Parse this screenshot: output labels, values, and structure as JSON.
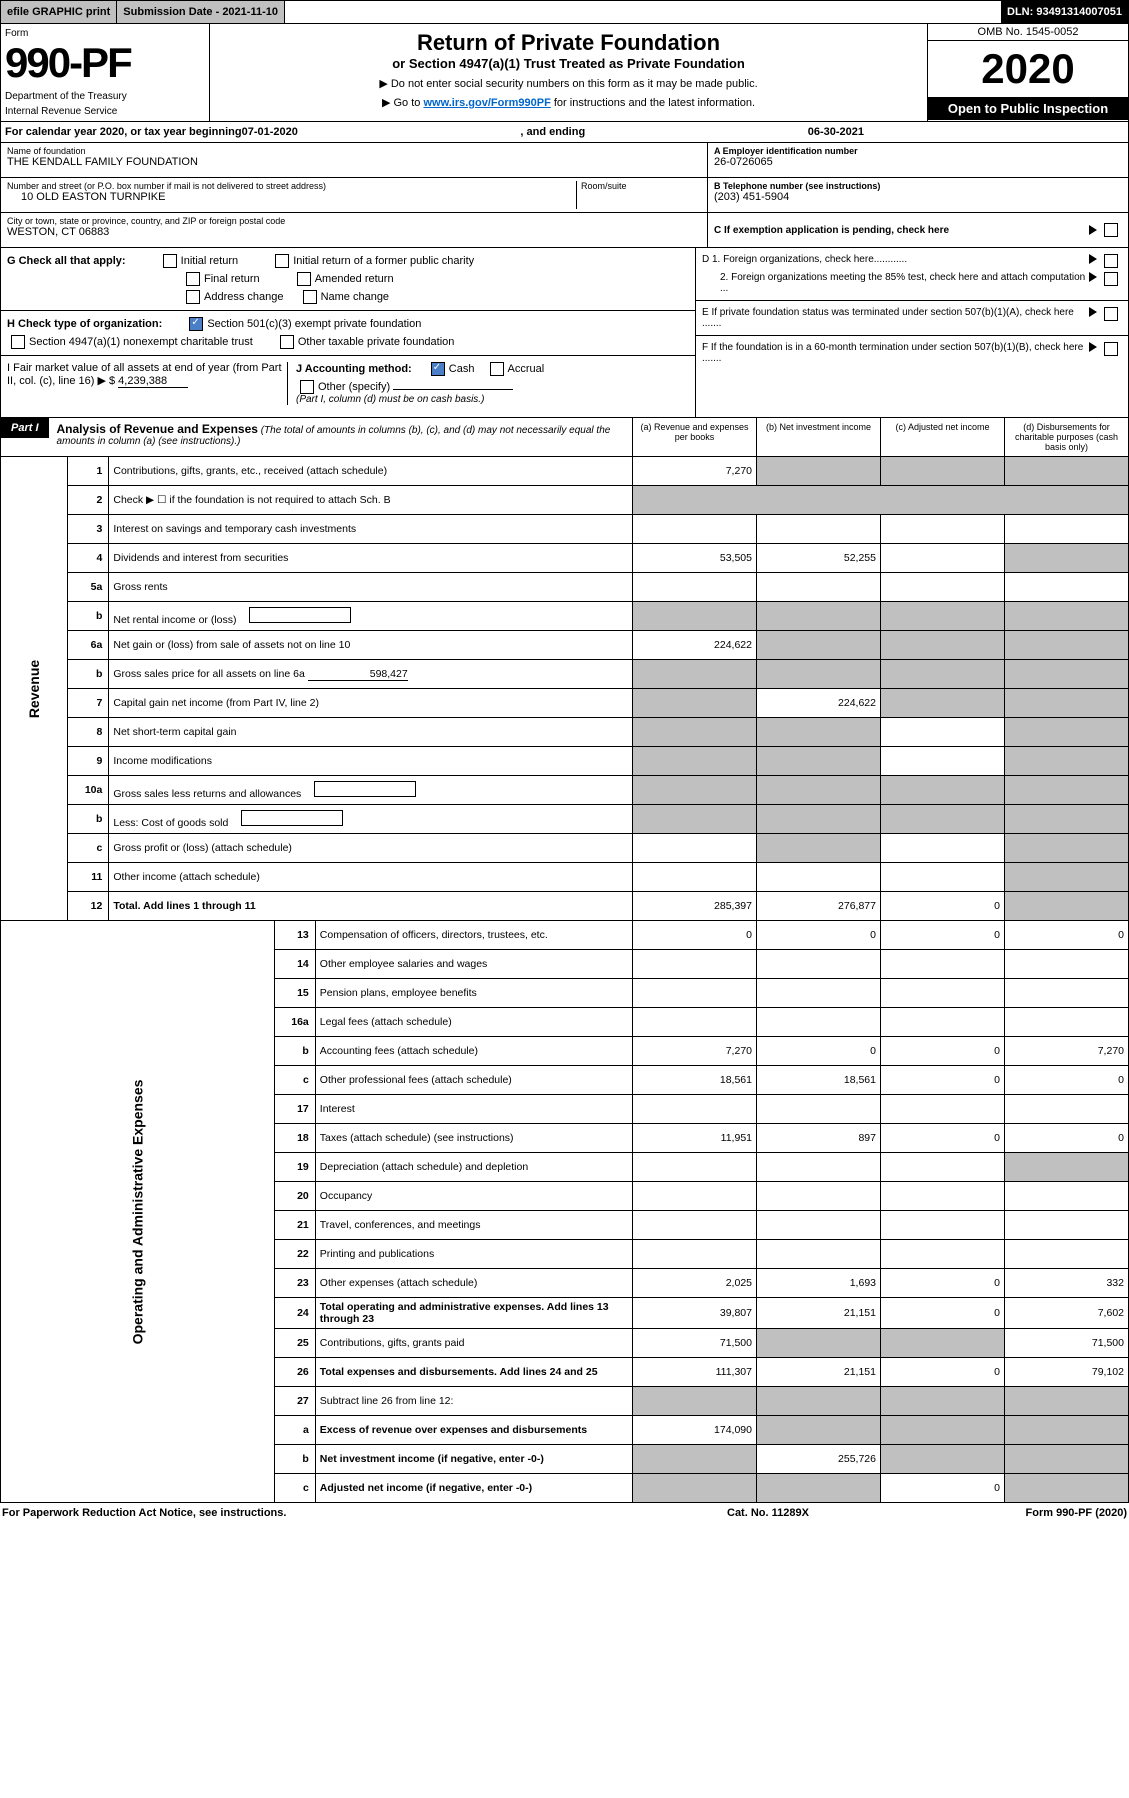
{
  "topbar": {
    "efile": "efile GRAPHIC print",
    "subdate": "Submission Date - 2021-11-10",
    "dln": "DLN: 93491314007051"
  },
  "formhead": {
    "form_word": "Form",
    "form_num": "990-PF",
    "dept": "Department of the Treasury",
    "irs": "Internal Revenue Service",
    "title": "Return of Private Foundation",
    "subtitle": "or Section 4947(a)(1) Trust Treated as Private Foundation",
    "note1": "▶ Do not enter social security numbers on this form as it may be made public.",
    "note2_pre": "▶ Go to ",
    "note2_link": "www.irs.gov/Form990PF",
    "note2_post": " for instructions and the latest information.",
    "omb": "OMB No. 1545-0052",
    "year": "2020",
    "open": "Open to Public Inspection"
  },
  "calrow": {
    "pre": "For calendar year 2020, or tax year beginning ",
    "begin": "07-01-2020",
    "mid": ", and ending ",
    "end": "06-30-2021"
  },
  "addr": {
    "name_lbl": "Name of foundation",
    "name": "THE KENDALL FAMILY FOUNDATION",
    "street_lbl": "Number and street (or P.O. box number if mail is not delivered to street address)",
    "street": "10 OLD EASTON TURNPIKE",
    "room_lbl": "Room/suite",
    "city_lbl": "City or town, state or province, country, and ZIP or foreign postal code",
    "city": "WESTON, CT  06883",
    "a_lbl": "A Employer identification number",
    "a_val": "26-0726065",
    "b_lbl": "B Telephone number (see instructions)",
    "b_val": "(203) 451-5904",
    "c_lbl": "C If exemption application is pending, check here"
  },
  "g": {
    "lbl": "G Check all that apply:",
    "o1": "Initial return",
    "o2": "Initial return of a former public charity",
    "o3": "Final return",
    "o4": "Amended return",
    "o5": "Address change",
    "o6": "Name change"
  },
  "h": {
    "lbl": "H Check type of organization:",
    "o1": "Section 501(c)(3) exempt private foundation",
    "o2": "Section 4947(a)(1) nonexempt charitable trust",
    "o3": "Other taxable private foundation"
  },
  "i": {
    "lbl": "I Fair market value of all assets at end of year (from Part II, col. (c), line 16) ▶ $",
    "val": "4,239,388"
  },
  "j": {
    "lbl": "J Accounting method:",
    "o1": "Cash",
    "o2": "Accrual",
    "o3": "Other (specify)",
    "note": "(Part I, column (d) must be on cash basis.)"
  },
  "right": {
    "d1": "D 1. Foreign organizations, check here............",
    "d2": "2. Foreign organizations meeting the 85% test, check here and attach computation ...",
    "e": "E  If private foundation status was terminated under section 507(b)(1)(A), check here .......",
    "f": "F  If the foundation is in a 60-month termination under section 507(b)(1)(B), check here ......."
  },
  "part1": {
    "label": "Part I",
    "title_b": "Analysis of Revenue and Expenses",
    "title_rest": " (The total of amounts in columns (b), (c), and (d) may not necessarily equal the amounts in column (a) (see instructions).)",
    "col_a": "(a)   Revenue and expenses per books",
    "col_b": "(b)   Net investment income",
    "col_c": "(c)  Adjusted net income",
    "col_d": "(d)  Disbursements for charitable purposes (cash basis only)"
  },
  "vside": {
    "rev": "Revenue",
    "exp": "Operating and Administrative Expenses"
  },
  "rows": [
    {
      "ln": "1",
      "desc": "Contributions, gifts, grants, etc., received (attach schedule)",
      "a": "7,270",
      "b": "",
      "c": "",
      "d": "",
      "greyB": true,
      "greyC": true,
      "greyD": true
    },
    {
      "ln": "2",
      "desc": "Check ▶ ☐ if the foundation is not required to attach Sch. B",
      "noamt": true
    },
    {
      "ln": "3",
      "desc": "Interest on savings and temporary cash investments",
      "a": "",
      "b": "",
      "c": "",
      "d": ""
    },
    {
      "ln": "4",
      "desc": "Dividends and interest from securities",
      "a": "53,505",
      "b": "52,255",
      "c": "",
      "d": "",
      "greyD": true
    },
    {
      "ln": "5a",
      "desc": "Gross rents",
      "a": "",
      "b": "",
      "c": "",
      "d": ""
    },
    {
      "ln": "b",
      "desc": "Net rental income or (loss)",
      "inline": true,
      "greyA": true,
      "greyB": true,
      "greyC": true,
      "greyD": true
    },
    {
      "ln": "6a",
      "desc": "Net gain or (loss) from sale of assets not on line 10",
      "a": "224,622",
      "b": "",
      "c": "",
      "d": "",
      "greyB": true,
      "greyC": true,
      "greyD": true
    },
    {
      "ln": "b",
      "desc": "Gross sales price for all assets on line 6a",
      "inline_val": "598,427",
      "greyA": true,
      "greyB": true,
      "greyC": true,
      "greyD": true
    },
    {
      "ln": "7",
      "desc": "Capital gain net income (from Part IV, line 2)",
      "a": "",
      "b": "224,622",
      "c": "",
      "d": "",
      "greyA": true,
      "greyC": true,
      "greyD": true
    },
    {
      "ln": "8",
      "desc": "Net short-term capital gain",
      "a": "",
      "b": "",
      "c": "",
      "d": "",
      "greyA": true,
      "greyB": true,
      "greyD": true
    },
    {
      "ln": "9",
      "desc": "Income modifications",
      "a": "",
      "b": "",
      "c": "",
      "d": "",
      "greyA": true,
      "greyB": true,
      "greyD": true
    },
    {
      "ln": "10a",
      "desc": "Gross sales less returns and allowances",
      "inline": true,
      "greyA": true,
      "greyB": true,
      "greyC": true,
      "greyD": true
    },
    {
      "ln": "b",
      "desc": "Less: Cost of goods sold",
      "inline": true,
      "greyA": true,
      "greyB": true,
      "greyC": true,
      "greyD": true
    },
    {
      "ln": "c",
      "desc": "Gross profit or (loss) (attach schedule)",
      "a": "",
      "b": "",
      "c": "",
      "d": "",
      "greyB": true,
      "greyD": true
    },
    {
      "ln": "11",
      "desc": "Other income (attach schedule)",
      "a": "",
      "b": "",
      "c": "",
      "d": "",
      "greyD": true
    },
    {
      "ln": "12",
      "desc": "Total. Add lines 1 through 11",
      "bold": true,
      "a": "285,397",
      "b": "276,877",
      "c": "0",
      "d": "",
      "greyD": true
    }
  ],
  "exp_rows": [
    {
      "ln": "13",
      "desc": "Compensation of officers, directors, trustees, etc.",
      "a": "0",
      "b": "0",
      "c": "0",
      "d": "0"
    },
    {
      "ln": "14",
      "desc": "Other employee salaries and wages",
      "a": "",
      "b": "",
      "c": "",
      "d": ""
    },
    {
      "ln": "15",
      "desc": "Pension plans, employee benefits",
      "a": "",
      "b": "",
      "c": "",
      "d": ""
    },
    {
      "ln": "16a",
      "desc": "Legal fees (attach schedule)",
      "a": "",
      "b": "",
      "c": "",
      "d": ""
    },
    {
      "ln": "b",
      "desc": "Accounting fees (attach schedule)",
      "a": "7,270",
      "b": "0",
      "c": "0",
      "d": "7,270"
    },
    {
      "ln": "c",
      "desc": "Other professional fees (attach schedule)",
      "a": "18,561",
      "b": "18,561",
      "c": "0",
      "d": "0"
    },
    {
      "ln": "17",
      "desc": "Interest",
      "a": "",
      "b": "",
      "c": "",
      "d": ""
    },
    {
      "ln": "18",
      "desc": "Taxes (attach schedule) (see instructions)",
      "a": "11,951",
      "b": "897",
      "c": "0",
      "d": "0"
    },
    {
      "ln": "19",
      "desc": "Depreciation (attach schedule) and depletion",
      "a": "",
      "b": "",
      "c": "",
      "d": "",
      "greyD": true
    },
    {
      "ln": "20",
      "desc": "Occupancy",
      "a": "",
      "b": "",
      "c": "",
      "d": ""
    },
    {
      "ln": "21",
      "desc": "Travel, conferences, and meetings",
      "a": "",
      "b": "",
      "c": "",
      "d": ""
    },
    {
      "ln": "22",
      "desc": "Printing and publications",
      "a": "",
      "b": "",
      "c": "",
      "d": ""
    },
    {
      "ln": "23",
      "desc": "Other expenses (attach schedule)",
      "a": "2,025",
      "b": "1,693",
      "c": "0",
      "d": "332"
    },
    {
      "ln": "24",
      "desc": "Total operating and administrative expenses. Add lines 13 through 23",
      "bold": true,
      "a": "39,807",
      "b": "21,151",
      "c": "0",
      "d": "7,602"
    },
    {
      "ln": "25",
      "desc": "Contributions, gifts, grants paid",
      "a": "71,500",
      "b": "",
      "c": "",
      "d": "71,500",
      "greyB": true,
      "greyC": true
    },
    {
      "ln": "26",
      "desc": "Total expenses and disbursements. Add lines 24 and 25",
      "bold": true,
      "a": "111,307",
      "b": "21,151",
      "c": "0",
      "d": "79,102"
    },
    {
      "ln": "27",
      "desc": "Subtract line 26 from line 12:",
      "greyA": true,
      "greyB": true,
      "greyC": true,
      "greyD": true
    },
    {
      "ln": "a",
      "desc": "Excess of revenue over expenses and disbursements",
      "bold": true,
      "a": "174,090",
      "b": "",
      "c": "",
      "d": "",
      "greyB": true,
      "greyC": true,
      "greyD": true
    },
    {
      "ln": "b",
      "desc": "Net investment income (if negative, enter -0-)",
      "bold": true,
      "a": "",
      "b": "255,726",
      "c": "",
      "d": "",
      "greyA": true,
      "greyC": true,
      "greyD": true
    },
    {
      "ln": "c",
      "desc": "Adjusted net income (if negative, enter -0-)",
      "bold": true,
      "a": "",
      "b": "",
      "c": "0",
      "d": "",
      "greyA": true,
      "greyB": true,
      "greyD": true
    }
  ],
  "footer": {
    "left": "For Paperwork Reduction Act Notice, see instructions.",
    "mid": "Cat. No. 11289X",
    "right": "Form 990-PF (2020)"
  }
}
